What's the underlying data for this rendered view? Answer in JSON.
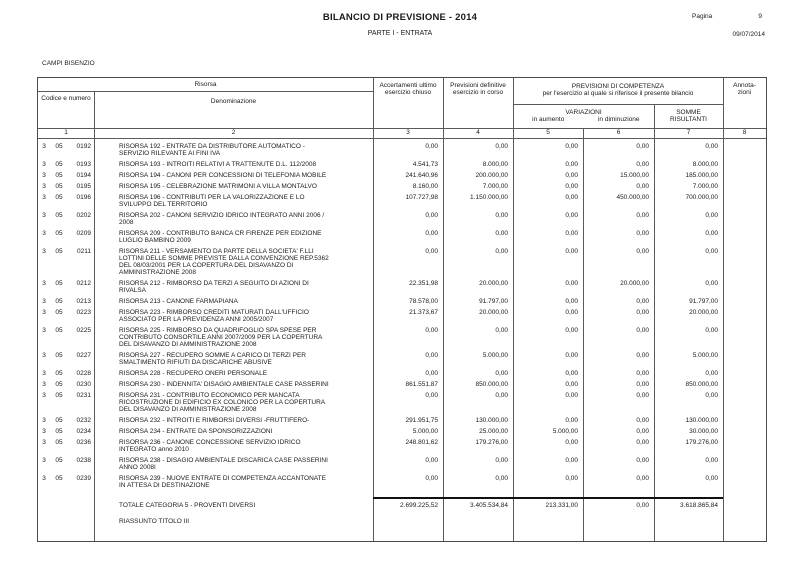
{
  "page": {
    "title": "BILANCIO DI PREVISIONE - 2014",
    "subtitle": "PARTE I - ENTRATA",
    "page_label": "Pagina",
    "page_number": "9",
    "date": "09/07/2014",
    "entity": "CAMPI BISENZIO"
  },
  "table": {
    "headers": {
      "risorsa": "Risorsa",
      "codice": "Codice e numero",
      "denominazione": "Denominazione",
      "accertamenti": "Accertamenti ultimo esercizio chiuso",
      "previsioni": "Previsioni definitive esercizio in corso",
      "competenza_line1": "PREVISIONI DI COMPETENZA",
      "competenza_line2": "per l'esercizio al quale si riferisce il presente bilancio",
      "variazioni": "VARIAZIONI",
      "in_aumento": "in aumento",
      "in_diminuzione": "in diminuzione",
      "somme_risultanti": "SOMME RISULTANTI",
      "annotazioni_line1": "Annota-",
      "annotazioni_line2": "zioni"
    },
    "col_numbers": [
      "1",
      "2",
      "3",
      "4",
      "5",
      "6",
      "7",
      "8"
    ],
    "rows": [
      {
        "t": "3",
        "c": "05",
        "n": "0192",
        "desc": "RISORSA 192 - ENTRATE DA DISTRIBUTORE AUTOMATICO - SERVIZIO RILEVANTE AI FINI IVA",
        "acc": "0,00",
        "prev": "0,00",
        "aum": "0,00",
        "dim": "0,00",
        "som": "0,00"
      },
      {
        "t": "3",
        "c": "05",
        "n": "0193",
        "desc": "RISORSA 193 - INTROITI RELATIVI A TRATTENUTE D.L. 112/2008",
        "acc": "4.541,73",
        "prev": "8.000,00",
        "aum": "0,00",
        "dim": "0,00",
        "som": "8.000,00"
      },
      {
        "t": "3",
        "c": "05",
        "n": "0194",
        "desc": "RISORSA 194 - CANONI PER CONCESSIONI DI TELEFONIA MOBILE",
        "acc": "241.640,96",
        "prev": "200.000,00",
        "aum": "0,00",
        "dim": "15.000,00",
        "som": "185.000,00"
      },
      {
        "t": "3",
        "c": "05",
        "n": "0195",
        "desc": "RISORSA 195 - CELEBRAZIONE MATRIMONI A VILLA MONTALVO",
        "acc": "8.160,00",
        "prev": "7.000,00",
        "aum": "0,00",
        "dim": "0,00",
        "som": "7.000,00"
      },
      {
        "t": "3",
        "c": "05",
        "n": "0196",
        "desc": "RISORSA 196 - CONTRIBUTI PER LA VALORIZZAZIONE E LO SVILUPPO DEL TERRITORIO",
        "acc": "107.727,98",
        "prev": "1.150.000,00",
        "aum": "0,00",
        "dim": "450.000,00",
        "som": "700.000,00"
      },
      {
        "t": "3",
        "c": "05",
        "n": "0202",
        "desc": "RISORSA 202 - CANONI SERVIZIO IDRICO INTEGRATO ANNI 2006 / 2008",
        "acc": "0,00",
        "prev": "0,00",
        "aum": "0,00",
        "dim": "0,00",
        "som": "0,00"
      },
      {
        "t": "3",
        "c": "05",
        "n": "0209",
        "desc": "RISORSA 209 - CONTRIBUTO BANCA CR FIRENZE PER EDIZIONE LUGLIO BAMBINO 2009",
        "acc": "0,00",
        "prev": "0,00",
        "aum": "0,00",
        "dim": "0,00",
        "som": "0,00"
      },
      {
        "t": "3",
        "c": "05",
        "n": "0211",
        "desc": "RISORSA 211 - VERSAMENTO DA PARTE DELLA SOCIETA' F.LLI LOTTINI DELLE SOMME PREVISTE DALLA CONVENZIONE REP.5362 DEL 08/03/2001 PER LA COPERTURA DEL DISAVANZO DI AMMINISTRAZIONE 2008",
        "acc": "0,00",
        "prev": "0,00",
        "aum": "0,00",
        "dim": "0,00",
        "som": "0,00"
      },
      {
        "t": "3",
        "c": "05",
        "n": "0212",
        "desc": "RISORSA 212 - RIMBORSO DA TERZI A SEGUITO DI AZIONI DI RIVALSA",
        "acc": "22.351,98",
        "prev": "20.000,00",
        "aum": "0,00",
        "dim": "20.000,00",
        "som": "0,00"
      },
      {
        "t": "3",
        "c": "05",
        "n": "0213",
        "desc": "RISORSA 213 - CANONE FARMAPIANA",
        "acc": "78.578,00",
        "prev": "91.797,00",
        "aum": "0,00",
        "dim": "0,00",
        "som": "91.797,00"
      },
      {
        "t": "3",
        "c": "05",
        "n": "0223",
        "desc": "RISORSA 223 - RIMBORSO CREDITI MATURATI DALL'UFFICIO ASSOCIATO PER LA PREVIDENZA ANNI 2005/2007",
        "acc": "21.373,67",
        "prev": "20.000,00",
        "aum": "0,00",
        "dim": "0,00",
        "som": "20.000,00"
      },
      {
        "t": "3",
        "c": "05",
        "n": "0225",
        "desc": "RISORSA 225 - RIMBORSO DA QUADRIFOGLIO SPA SPESE PER CONTRIBUTO CONSORTILE ANNI 2007/2009 PER LA COPERTURA DEL DISAVANZO DI AMMINISTRAZIONE 2008",
        "acc": "0,00",
        "prev": "0,00",
        "aum": "0,00",
        "dim": "0,00",
        "som": "0,00"
      },
      {
        "t": "3",
        "c": "05",
        "n": "0227",
        "desc": "RISORSA 227 - RECUPERO SOMME A CARICO DI TERZI PER SMALTIMENTO RIFIUTI DA DISCARICHE ABUSIVE",
        "acc": "0,00",
        "prev": "5.000,00",
        "aum": "0,00",
        "dim": "0,00",
        "som": "5.000,00"
      },
      {
        "t": "3",
        "c": "05",
        "n": "0228",
        "desc": "RISORSA 228 - RECUPERO ONERI PERSONALE",
        "acc": "0,00",
        "prev": "0,00",
        "aum": "0,00",
        "dim": "0,00",
        "som": "0,00"
      },
      {
        "t": "3",
        "c": "05",
        "n": "0230",
        "desc": "RISORSA 230 - INDENNITA' DISAGIO AMBIENTALE CASE PASSERINI",
        "acc": "861.551,87",
        "prev": "850.000,00",
        "aum": "0,00",
        "dim": "0,00",
        "som": "850.000,00"
      },
      {
        "t": "3",
        "c": "05",
        "n": "0231",
        "desc": "RISORSA 231 - CONTRIBUTO ECONOMICO PER MANCATA RICOSTRUZIONE DI EDIFICIO EX COLONICO PER LA COPERTURA DEL DISAVANZO DI AMMINISTRAZIONE 2008",
        "acc": "0,00",
        "prev": "0,00",
        "aum": "0,00",
        "dim": "0,00",
        "som": "0,00"
      },
      {
        "t": "3",
        "c": "05",
        "n": "0232",
        "desc": "RISORSA 232 - INTROITI E RIMBORSI DIVERSI -FRUTTIFERO-",
        "acc": "291.951,75",
        "prev": "130.000,00",
        "aum": "0,00",
        "dim": "0,00",
        "som": "130.000,00"
      },
      {
        "t": "3",
        "c": "05",
        "n": "0234",
        "desc": "RISORSA 234 - ENTRATE DA SPONSORIZZAZIONI",
        "acc": "5.000,00",
        "prev": "25.000,00",
        "aum": "5.000,00",
        "dim": "0,00",
        "som": "30.000,00"
      },
      {
        "t": "3",
        "c": "05",
        "n": "0236",
        "desc": "RISORSA 236 - CANONE CONCESSIONE SERVIZIO IDRICO INTEGRATO anno 2010",
        "acc": "248.801,62",
        "prev": "179.276,00",
        "aum": "0,00",
        "dim": "0,00",
        "som": "179.276,00"
      },
      {
        "t": "3",
        "c": "05",
        "n": "0238",
        "desc": "RISORSA 238 - DISAGIO AMBIENTALE DISCARICA CASE PASSERINI ANNO 2008I",
        "acc": "0,00",
        "prev": "0,00",
        "aum": "0,00",
        "dim": "0,00",
        "som": "0,00"
      },
      {
        "t": "3",
        "c": "05",
        "n": "0239",
        "desc": "RISORSA 239 - NUOVE ENTRATE DI COMPETENZA ACCANTONATE IN ATTESA DI DESTINAZIONE",
        "acc": "0,00",
        "prev": "0,00",
        "aum": "0,00",
        "dim": "0,00",
        "som": "0,00"
      }
    ],
    "total": {
      "label": "TOTALE CATEGORIA 5 - PROVENTI DIVERSI",
      "acc": "2.699.225,52",
      "prev": "3.405.534,84",
      "aum": "213.331,00",
      "dim": "0,00",
      "som": "3.618.865,84"
    },
    "riassunto": "RIASSUNTO TITOLO III"
  }
}
